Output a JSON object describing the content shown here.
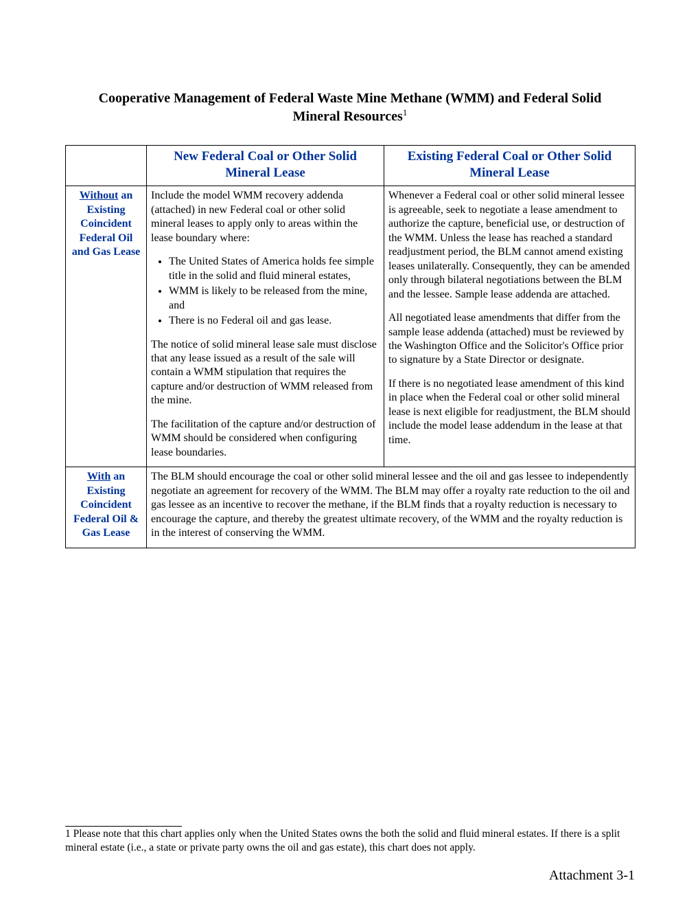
{
  "title": {
    "line1": "Cooperative Management of Federal Waste Mine Methane (WMM) and Federal Solid",
    "line2_prefix": "Mineral Resources",
    "footref": "1"
  },
  "headers": {
    "col1": "",
    "col2": "New Federal Coal or Other Solid Mineral Lease",
    "col3": "Existing Federal Coal or Other Solid Mineral Lease"
  },
  "row1": {
    "label_under": "Without",
    "label_rest": " an Existing Coincident Federal Oil and Gas Lease",
    "cell_new_p1": "Include the model WMM recovery addenda (attached) in new Federal coal or other solid mineral leases to apply only to areas within the lease boundary where:",
    "cell_new_b1": "The United States of America holds fee simple title in the solid and fluid mineral estates,",
    "cell_new_b2": "WMM is likely to be released from the mine, and",
    "cell_new_b3": "There is no Federal oil and gas lease.",
    "cell_new_p2": "The notice of solid mineral lease sale must disclose that any lease issued as a result of the sale will contain a WMM stipulation that requires the capture and/or destruction of WMM released from the mine.",
    "cell_new_p3": "The facilitation of the capture and/or destruction of WMM should be considered when configuring lease boundaries.",
    "cell_exist_p1": "Whenever a Federal coal or other solid mineral lessee is agreeable, seek to negotiate a lease amendment to authorize the capture, beneficial use, or destruction of the WMM.  Unless the lease has reached a standard readjustment period, the BLM cannot amend existing leases unilaterally.  Consequently, they can be amended only through bilateral negotiations between the BLM and the lessee.  Sample lease addenda are attached.",
    "cell_exist_p2": "All negotiated lease amendments that differ from the sample lease addenda (attached) must be reviewed by the Washington Office and the Solicitor's Office prior to signature by a State Director or designate.",
    "cell_exist_p3": "If there is no negotiated lease amendment of this kind in place when the Federal coal or other solid mineral lease is next eligible for readjustment, the BLM should include the model lease addendum in the lease at that time."
  },
  "row2": {
    "label_under": "With",
    "label_rest": " an Existing Coincident Federal Oil & Gas Lease",
    "cell_text": "The BLM should encourage the coal or other solid mineral lessee and the oil and gas lessee to independently negotiate an agreement for recovery of the WMM.  The BLM may offer a royalty rate reduction to the oil and gas lessee as an incentive to recover the methane, if the BLM finds that a royalty reduction is necessary to encourage the capture, and thereby the greatest ultimate recovery, of the WMM and the royalty reduction is in the interest of conserving the WMM."
  },
  "footnote": "1 Please note that this chart applies only when the United States owns the both the solid and fluid mineral estates.  If there is a split mineral estate (i.e., a state or private party owns the oil and gas estate), this chart does not apply.",
  "page_number": "Attachment 3-1"
}
